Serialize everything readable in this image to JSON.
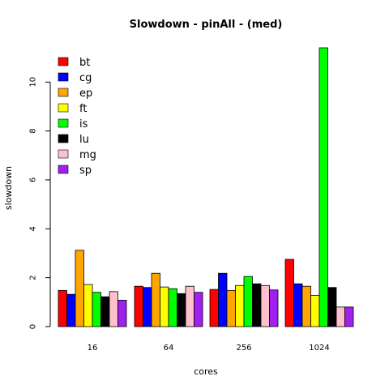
{
  "chart_data": {
    "type": "bar",
    "title": "Slowdown - pinAll - (med)",
    "xlabel": "cores",
    "ylabel": "slowdown",
    "categories": [
      "16",
      "64",
      "256",
      "1024"
    ],
    "ylim": [
      0,
      11.4
    ],
    "yticks": [
      0,
      2,
      4,
      6,
      8,
      10
    ],
    "legend_position": "top-left",
    "series": [
      {
        "name": "bt",
        "color": "#ff0000",
        "values": [
          1.48,
          1.65,
          1.52,
          2.75
        ]
      },
      {
        "name": "cg",
        "color": "#0000ff",
        "values": [
          1.32,
          1.6,
          2.18,
          1.75
        ]
      },
      {
        "name": "ep",
        "color": "#ffa500",
        "values": [
          3.12,
          2.18,
          1.48,
          1.65
        ]
      },
      {
        "name": "ft",
        "color": "#ffff00",
        "values": [
          1.72,
          1.62,
          1.68,
          1.28
        ]
      },
      {
        "name": "is",
        "color": "#00ff00",
        "values": [
          1.4,
          1.55,
          2.05,
          11.4
        ]
      },
      {
        "name": "lu",
        "color": "#000000",
        "values": [
          1.22,
          1.35,
          1.75,
          1.6
        ]
      },
      {
        "name": "mg",
        "color": "#ffc0cb",
        "values": [
          1.43,
          1.65,
          1.68,
          0.8
        ]
      },
      {
        "name": "sp",
        "color": "#a020f0",
        "values": [
          1.08,
          1.4,
          1.5,
          0.8
        ]
      }
    ]
  }
}
